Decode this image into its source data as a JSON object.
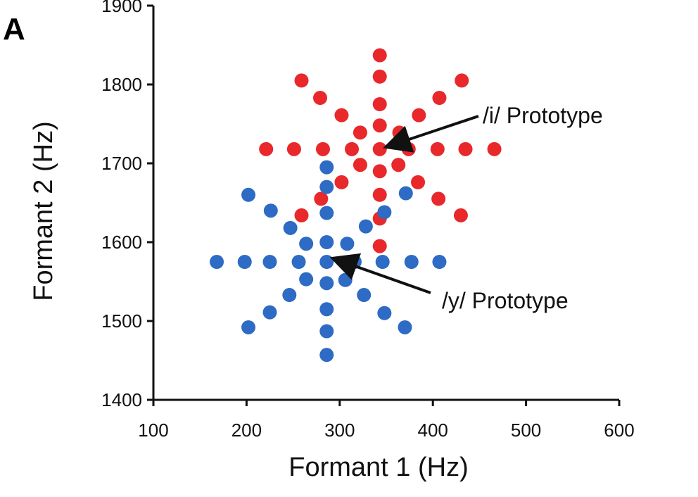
{
  "panel_label": "A",
  "chart_data": {
    "type": "scatter",
    "xlabel": "Formant 1 (Hz)",
    "ylabel": "Formant 2 (Hz)",
    "xlim": [
      100,
      600
    ],
    "ylim": [
      1400,
      1900
    ],
    "x_ticks": [
      100,
      200,
      300,
      400,
      500,
      600
    ],
    "y_ticks": [
      1400,
      1500,
      1600,
      1700,
      1800,
      1900
    ],
    "grid": false,
    "series": [
      {
        "color": "#e8282b",
        "points": [
          [
            343,
            1837
          ],
          [
            343,
            1810
          ],
          [
            343,
            1775
          ],
          [
            343,
            1748
          ],
          [
            343,
            1718
          ],
          [
            343,
            1690
          ],
          [
            343,
            1660
          ],
          [
            343,
            1630
          ],
          [
            343,
            1595
          ],
          [
            221,
            1718
          ],
          [
            251,
            1718
          ],
          [
            282,
            1718
          ],
          [
            313,
            1718
          ],
          [
            374,
            1718
          ],
          [
            405,
            1718
          ],
          [
            435,
            1718
          ],
          [
            466,
            1718
          ],
          [
            259,
            1805
          ],
          [
            279,
            1783
          ],
          [
            302,
            1761
          ],
          [
            322,
            1739
          ],
          [
            363,
            1698
          ],
          [
            384,
            1676
          ],
          [
            431,
            1805
          ],
          [
            407,
            1783
          ],
          [
            385,
            1761
          ],
          [
            364,
            1739
          ],
          [
            322,
            1698
          ],
          [
            302,
            1676
          ],
          [
            280,
            1655
          ],
          [
            259,
            1634
          ],
          [
            406,
            1655
          ],
          [
            430,
            1634
          ]
        ]
      },
      {
        "color": "#2d6bc4",
        "points": [
          [
            286,
            1695
          ],
          [
            286,
            1670
          ],
          [
            286,
            1637
          ],
          [
            286,
            1600
          ],
          [
            286,
            1575
          ],
          [
            286,
            1548
          ],
          [
            286,
            1515
          ],
          [
            286,
            1487
          ],
          [
            286,
            1457
          ],
          [
            168,
            1575
          ],
          [
            198,
            1575
          ],
          [
            225,
            1575
          ],
          [
            256,
            1575
          ],
          [
            316,
            1575
          ],
          [
            346,
            1575
          ],
          [
            377,
            1575
          ],
          [
            407,
            1575
          ],
          [
            202,
            1660
          ],
          [
            226,
            1640
          ],
          [
            247,
            1618
          ],
          [
            264,
            1598
          ],
          [
            306,
            1552
          ],
          [
            326,
            1533
          ],
          [
            348,
            1510
          ],
          [
            370,
            1492
          ],
          [
            371,
            1662
          ],
          [
            348,
            1638
          ],
          [
            328,
            1620
          ],
          [
            308,
            1598
          ],
          [
            264,
            1553
          ],
          [
            246,
            1533
          ],
          [
            225,
            1511
          ],
          [
            202,
            1492
          ]
        ]
      }
    ],
    "annotations": [
      {
        "text": "/i/ Prototype",
        "target": [
          343,
          1718
        ]
      },
      {
        "text": "/y/ Prototype",
        "target": [
          286,
          1575
        ]
      }
    ]
  }
}
